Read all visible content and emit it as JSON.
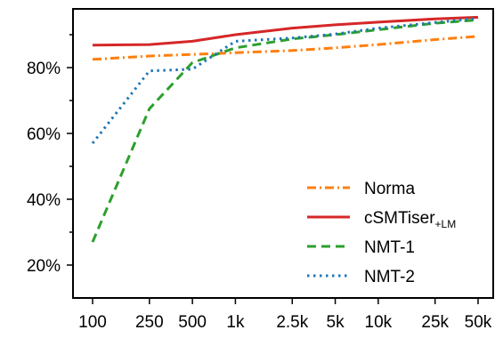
{
  "chart_data": {
    "type": "line",
    "title": "",
    "xlabel": "",
    "ylabel": "",
    "x_scale": "log",
    "categories": [
      "100",
      "250",
      "500",
      "1k",
      "2.5k",
      "5k",
      "10k",
      "25k",
      "50k"
    ],
    "x": [
      100,
      250,
      500,
      1000,
      2500,
      5000,
      10000,
      25000,
      50000
    ],
    "ylim": [
      15,
      100
    ],
    "yticks": [
      20,
      40,
      60,
      80
    ],
    "ytick_labels": [
      "20%",
      "40%",
      "60%",
      "80%"
    ],
    "grid": false,
    "legend_position": "bottom-right",
    "series": [
      {
        "name": "Norma",
        "name_subscript": "",
        "color": "#ff7f0e",
        "dash": "dash-dot",
        "values": [
          82.5,
          83.5,
          84.0,
          84.5,
          85.2,
          86.0,
          87.0,
          88.5,
          89.5
        ]
      },
      {
        "name": "cSMTiser",
        "name_subscript": "+LM",
        "color": "#d62728",
        "dash": "solid",
        "values": [
          86.8,
          87.0,
          88.0,
          90.0,
          92.0,
          93.0,
          93.8,
          94.8,
          95.3
        ]
      },
      {
        "name": "NMT-1",
        "name_subscript": "",
        "color": "#2ca02c",
        "dash": "dashed",
        "values": [
          27.0,
          67.5,
          81.5,
          86.0,
          88.7,
          90.0,
          91.5,
          93.5,
          94.5
        ]
      },
      {
        "name": "NMT-2",
        "name_subscript": "",
        "color": "#1f77b4",
        "dash": "dotted",
        "values": [
          57.0,
          79.0,
          79.5,
          88.0,
          89.0,
          90.2,
          92.0,
          93.7,
          95.0
        ]
      }
    ]
  }
}
